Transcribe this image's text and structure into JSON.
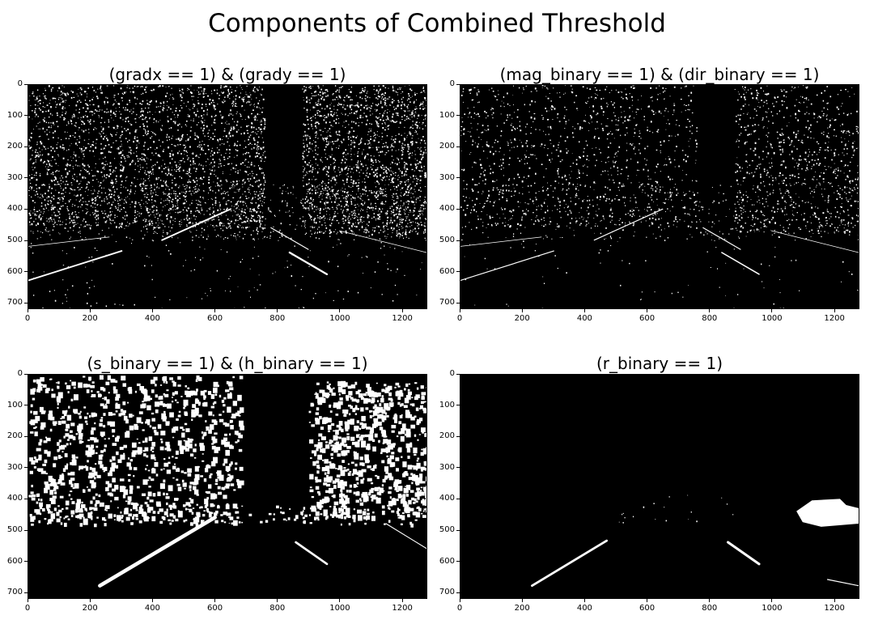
{
  "suptitle": "Components of Combined Threshold",
  "chart_data": [
    {
      "type": "heatmap",
      "title": "(gradx == 1) & (grady == 1)",
      "xlim": [
        0,
        1280
      ],
      "ylim": [
        720,
        0
      ],
      "xticks": [
        0,
        200,
        400,
        600,
        800,
        1000,
        1200
      ],
      "yticks": [
        0,
        100,
        200,
        300,
        400,
        500,
        600,
        700
      ],
      "colormap": "gray",
      "background": "#000000",
      "foreground": "#ffffff"
    },
    {
      "type": "heatmap",
      "title": "(mag_binary == 1) & (dir_binary == 1)",
      "xlim": [
        0,
        1280
      ],
      "ylim": [
        720,
        0
      ],
      "xticks": [
        0,
        200,
        400,
        600,
        800,
        1000,
        1200
      ],
      "yticks": [
        0,
        100,
        200,
        300,
        400,
        500,
        600,
        700
      ],
      "colormap": "gray",
      "background": "#000000",
      "foreground": "#ffffff"
    },
    {
      "type": "heatmap",
      "title": "(s_binary == 1) & (h_binary == 1)",
      "xlim": [
        0,
        1280
      ],
      "ylim": [
        720,
        0
      ],
      "xticks": [
        0,
        200,
        400,
        600,
        800,
        1000,
        1200
      ],
      "yticks": [
        0,
        100,
        200,
        300,
        400,
        500,
        600,
        700
      ],
      "colormap": "gray",
      "background": "#000000",
      "foreground": "#ffffff"
    },
    {
      "type": "heatmap",
      "title": "(r_binary == 1)",
      "xlim": [
        0,
        1280
      ],
      "ylim": [
        720,
        0
      ],
      "xticks": [
        0,
        200,
        400,
        600,
        800,
        1000,
        1200
      ],
      "yticks": [
        0,
        100,
        200,
        300,
        400,
        500,
        600,
        700
      ],
      "colormap": "gray",
      "background": "#000000",
      "foreground": "#ffffff"
    }
  ]
}
